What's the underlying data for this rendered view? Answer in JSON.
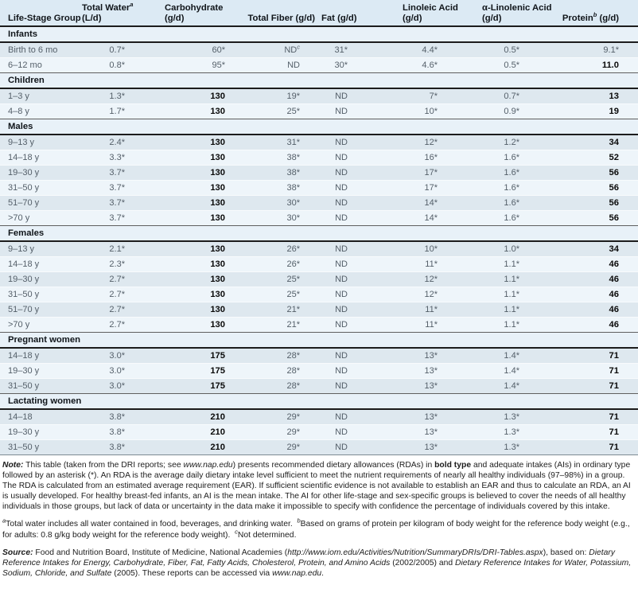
{
  "colors": {
    "header_bg": "#dceaf4",
    "group_band_bg": "#e8f1f8",
    "row_dark": "#dee8ef",
    "row_light": "#eef5fa",
    "heavy_rule": "#1c1c1c",
    "value_gray": "#545f69",
    "bold_black": "#0a0a0a"
  },
  "table": {
    "column_headers": [
      "Life-Stage Group",
      "Total Water^{a}\n(L/d)",
      "Carbohydrate\n(g/d)",
      "Total Fiber (g/d)",
      "Fat (g/d)",
      "Linoleic Acid\n(g/d)",
      "α-Linolenic Acid\n(g/d)",
      "Protein^{b} (g/d)"
    ],
    "groups": [
      {
        "label": "Infants",
        "rows": [
          {
            "label": "Birth to 6 mo",
            "values": [
              "0.7*",
              "60*",
              "ND^{c}",
              "31*",
              "4.4*",
              "0.5*",
              "9.1*"
            ]
          },
          {
            "label": "6–12 mo",
            "values": [
              "0.8*",
              "95*",
              "ND",
              "30*",
              "4.6*",
              "0.5*",
              "11.0"
            ]
          }
        ]
      },
      {
        "label": "Children",
        "rows": [
          {
            "label": "1–3 y",
            "values": [
              "1.3*",
              "130",
              "19*",
              "ND",
              "7*",
              "0.7*",
              "13"
            ]
          },
          {
            "label": "4–8 y",
            "values": [
              "1.7*",
              "130",
              "25*",
              "ND",
              "10*",
              "0.9*",
              "19"
            ]
          }
        ]
      },
      {
        "label": "Males",
        "rows": [
          {
            "label": "9–13 y",
            "values": [
              "2.4*",
              "130",
              "31*",
              "ND",
              "12*",
              "1.2*",
              "34"
            ]
          },
          {
            "label": "14–18 y",
            "values": [
              "3.3*",
              "130",
              "38*",
              "ND",
              "16*",
              "1.6*",
              "52"
            ]
          },
          {
            "label": "19–30 y",
            "values": [
              "3.7*",
              "130",
              "38*",
              "ND",
              "17*",
              "1.6*",
              "56"
            ]
          },
          {
            "label": "31–50 y",
            "values": [
              "3.7*",
              "130",
              "38*",
              "ND",
              "17*",
              "1.6*",
              "56"
            ]
          },
          {
            "label": "51–70 y",
            "values": [
              "3.7*",
              "130",
              "30*",
              "ND",
              "14*",
              "1.6*",
              "56"
            ]
          },
          {
            "label": ">70 y",
            "values": [
              "3.7*",
              "130",
              "30*",
              "ND",
              "14*",
              "1.6*",
              "56"
            ]
          }
        ]
      },
      {
        "label": "Females",
        "rows": [
          {
            "label": "9–13 y",
            "values": [
              "2.1*",
              "130",
              "26*",
              "ND",
              "10*",
              "1.0*",
              "34"
            ]
          },
          {
            "label": "14–18 y",
            "values": [
              "2.3*",
              "130",
              "26*",
              "ND",
              "11*",
              "1.1*",
              "46"
            ]
          },
          {
            "label": "19–30 y",
            "values": [
              "2.7*",
              "130",
              "25*",
              "ND",
              "12*",
              "1.1*",
              "46"
            ]
          },
          {
            "label": "31–50 y",
            "values": [
              "2.7*",
              "130",
              "25*",
              "ND",
              "12*",
              "1.1*",
              "46"
            ]
          },
          {
            "label": "51–70 y",
            "values": [
              "2.7*",
              "130",
              "21*",
              "ND",
              "11*",
              "1.1*",
              "46"
            ]
          },
          {
            "label": ">70 y",
            "values": [
              "2.7*",
              "130",
              "21*",
              "ND",
              "11*",
              "1.1*",
              "46"
            ]
          }
        ]
      },
      {
        "label": "Pregnant women",
        "rows": [
          {
            "label": "14–18 y",
            "values": [
              "3.0*",
              "175",
              "28*",
              "ND",
              "13*",
              "1.4*",
              "71"
            ]
          },
          {
            "label": "19–30 y",
            "values": [
              "3.0*",
              "175",
              "28*",
              "ND",
              "13*",
              "1.4*",
              "71"
            ]
          },
          {
            "label": "31–50 y",
            "values": [
              "3.0*",
              "175",
              "28*",
              "ND",
              "13*",
              "1.4*",
              "71"
            ]
          }
        ]
      },
      {
        "label": "Lactating women",
        "rows": [
          {
            "label": "14–18",
            "values": [
              "3.8*",
              "210",
              "29*",
              "ND",
              "13*",
              "1.3*",
              "71"
            ]
          },
          {
            "label": "19–30 y",
            "values": [
              "3.8*",
              "210",
              "29*",
              "ND",
              "13*",
              "1.3*",
              "71"
            ]
          },
          {
            "label": "31–50 y",
            "values": [
              "3.8*",
              "210",
              "29*",
              "ND",
              "13*",
              "1.3*",
              "71"
            ]
          }
        ]
      }
    ]
  },
  "notes": {
    "note": "{bi}Note:{/bi} This table (taken from the DRI reports; see {i}www.nap.edu{/i}) presents recommended dietary allowances (RDAs) in {b}bold type{/b} and adequate intakes (AIs) in ordinary type followed by an asterisk (*). An RDA is the average daily dietary intake level sufficient to meet the nutrient requirements of nearly all healthy individuals (97–98%) in a group. The RDA is calculated from an estimated average requirement (EAR). If sufficient scientific evidence is not available to establish an EAR and thus to calculate an RDA, an AI is usually developed. For healthy breast-fed infants, an AI is the mean intake. The AI for other life-stage and sex-specific groups is believed to cover the needs of all healthy individuals in those groups, but lack of data or uncertainty in the data make it impossible to specify with confidence the percentage of individuals covered by this intake.",
    "footnotes": "^{a}Total water includes all water contained in food, beverages, and drinking water.  ^{b}Based on grams of protein per kilogram of body weight for the reference body weight (e.g., for adults: 0.8 g/kg body weight for the reference body weight).  ^{c}Not determined.",
    "source": "{bi}Source:{/bi} Food and Nutrition Board, Institute of Medicine, National Academies ({i}http://www.iom.edu/Activities/Nutrition/SummaryDRIs/DRI-Tables.aspx{/i}), based on: {i}Dietary Reference Intakes for Energy, Carbohydrate, Fiber, Fat, Fatty Acids, Cholesterol, Protein, and Amino Acids{/i} (2002/2005) and {i}Dietary Reference Intakes for Water, Potassium, Sodium, Chloride, and Sulfate{/i} (2005). These reports can be accessed via {i}www.nap.edu{/i}."
  }
}
